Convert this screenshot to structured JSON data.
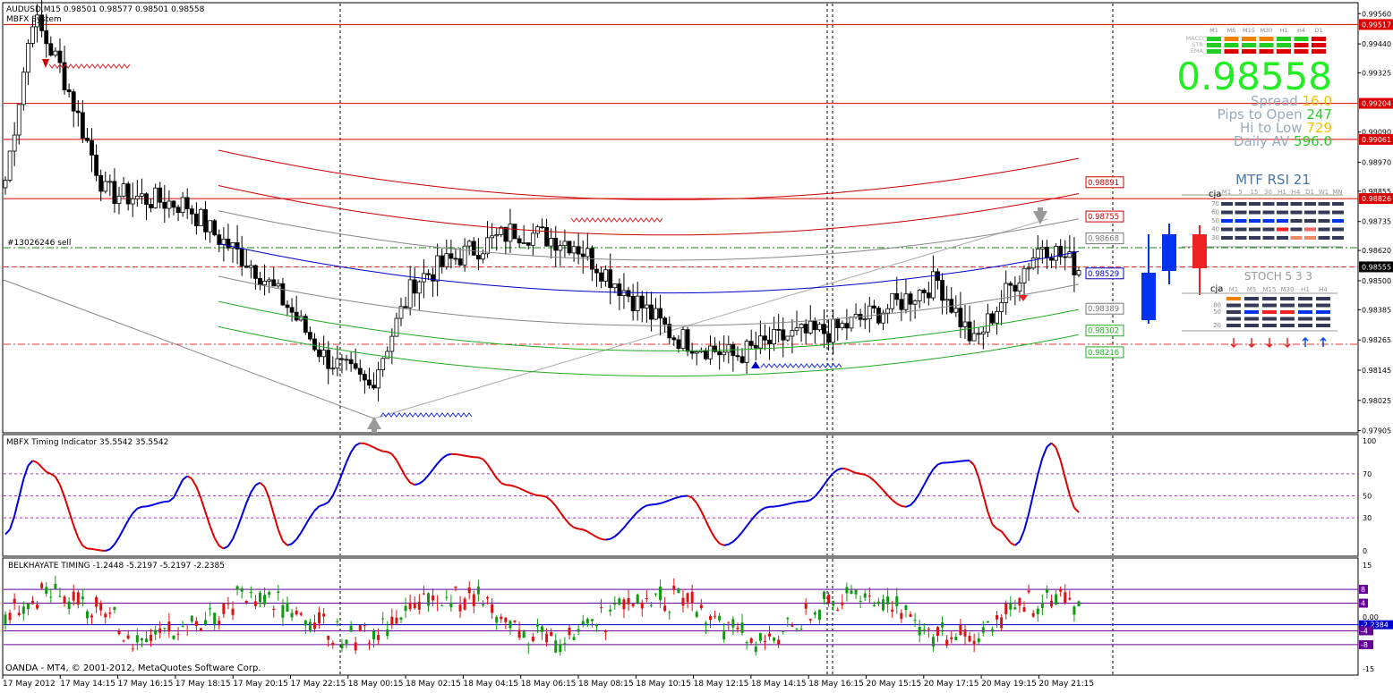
{
  "main": {
    "title": "AUDUSD,M15  0.98501 0.98577 0.98501 0.98558",
    "subtitle": "MBFX System",
    "order_label": "#13026246 sell",
    "price_big": "0.98558",
    "stats": [
      {
        "label": "Spread",
        "value": "16.0",
        "value_color": "#f0c000"
      },
      {
        "label": "Pips to Open",
        "value": "247",
        "value_color": "#2ecc2e"
      },
      {
        "label": "Hi to Low",
        "value": "729",
        "value_color": "#f0c000"
      },
      {
        "label": "Daily AV",
        "value": "596.0",
        "value_color": "#2ecc2e"
      }
    ],
    "trend_labels": [
      "MACD",
      "STR",
      "EMA"
    ],
    "trend_timeframes": [
      "M1",
      "M5",
      "M15",
      "M30",
      "H1",
      "H4",
      "D1"
    ],
    "rsi_title": "MTF RSI  21",
    "rsi_owner": "cja",
    "rsi_timeframes": [
      "M1",
      "5",
      "15",
      "30",
      "H1",
      "H4",
      "D1",
      "W1",
      "MN"
    ],
    "rsi_levels": [
      "70",
      "60",
      "50",
      "40",
      "30"
    ],
    "stoch_title": "STOCH  5 3 3",
    "stoch_owner": "cja",
    "stoch_timeframes": [
      "M1",
      "M5",
      "M15",
      "M30",
      "H1",
      "H4"
    ],
    "stoch_levels": [
      "80",
      "50",
      "20"
    ],
    "price_axis": [
      "0.99560",
      "0.99440",
      "0.99325",
      "0.99090",
      "0.98970",
      "0.98855",
      "0.98735",
      "0.98620",
      "0.98500",
      "0.98385",
      "0.98265",
      "0.98145",
      "0.98025",
      "0.97905"
    ],
    "price_tags": [
      {
        "text": "0.99517",
        "price": 0.99517,
        "type": "hline"
      },
      {
        "text": "0.99204",
        "price": 0.99204,
        "type": "hline"
      },
      {
        "text": "0.99061",
        "price": 0.99061,
        "type": "hline"
      },
      {
        "text": "0.98826",
        "price": 0.98826,
        "type": "hline"
      },
      {
        "text": "0.98555",
        "price": 0.98555,
        "type": "bid"
      }
    ],
    "band_labels": [
      {
        "text": "0.98891",
        "price": 0.98891,
        "color": "#cc0000"
      },
      {
        "text": "0.98755",
        "price": 0.98755,
        "color": "#cc0000"
      },
      {
        "text": "0.98668",
        "price": 0.98668,
        "color": "#777777"
      },
      {
        "text": "0.98529",
        "price": 0.98529,
        "color": "#0000cc"
      },
      {
        "text": "0.98389",
        "price": 0.98389,
        "color": "#777777"
      },
      {
        "text": "0.98302",
        "price": 0.98302,
        "color": "#22aa22"
      },
      {
        "text": "0.98216",
        "price": 0.98216,
        "color": "#22aa22"
      }
    ],
    "price_min": 0.979,
    "price_max": 0.996
  },
  "timing": {
    "title": "MBFX Timing Indicator 35.5542 35.5542",
    "axis": [
      "100",
      "70",
      "50",
      "30",
      "0"
    ]
  },
  "belkhayate": {
    "title": "BELKHAYATE TIMING  -1.2448 -5.2197 -5.2197 -2.2385",
    "axis": [
      "15",
      "0.00",
      "-15"
    ],
    "tags": [
      {
        "text": "8",
        "value": 8,
        "color": "#660099"
      },
      {
        "text": "4",
        "value": 4,
        "color": "#660099"
      },
      {
        "text": "-2.2384",
        "value": -2.2384,
        "color": "#0000cc"
      },
      {
        "text": "-4",
        "value": -4,
        "color": "#660099"
      },
      {
        "text": "-8",
        "value": -8,
        "color": "#660099"
      }
    ]
  },
  "copyright": "OANDA - MT4, © 2001-2012, MetaQuotes Software Corp.",
  "time_axis": [
    "17 May 2012",
    "17 May 14:15",
    "17 May 16:15",
    "17 May 18:15",
    "17 May 20:15",
    "17 May 22:15",
    "18 May 00:15",
    "18 May 02:15",
    "18 May 04:15",
    "18 May 06:15",
    "18 May 08:15",
    "18 May 10:15",
    "18 May 12:15",
    "18 May 14:15",
    "18 May 16:15",
    "20 May 15:15",
    "20 May 17:15",
    "20 May 19:15",
    "20 May 21:15"
  ],
  "colors": {
    "bull": "#ffffff",
    "bear": "#000000",
    "hline": "#dd0000",
    "blue": "#0000cc",
    "green": "#00cc00",
    "timing_up": "#0000dd",
    "timing_down": "#dd0000"
  }
}
